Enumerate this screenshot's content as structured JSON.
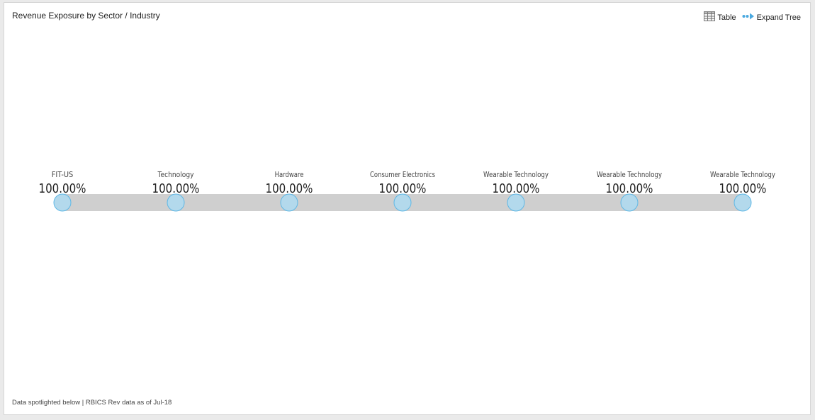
{
  "panel": {
    "title": "Revenue Exposure by Sector / Industry",
    "footer": "Data spotlighted below | RBICS Rev data as of Jul-18"
  },
  "toolbar": {
    "table_label": "Table",
    "expand_label": "Expand Tree"
  },
  "colors": {
    "node_fill": "#b3d9ec",
    "node_stroke": "#5fb8e6",
    "bar": "#cfcfcf",
    "expand_icon": "#4aa9e0"
  },
  "tree": {
    "nodes": [
      {
        "label": "FIT-US",
        "value": "100.00%"
      },
      {
        "label": "Technology",
        "value": "100.00%"
      },
      {
        "label": "Hardware",
        "value": "100.00%"
      },
      {
        "label": "Consumer Electronics",
        "value": "100.00%"
      },
      {
        "label": "Wearable Technology",
        "value": "100.00%"
      },
      {
        "label": "Wearable Technology",
        "value": "100.00%"
      },
      {
        "label": "Wearable Technology",
        "value": "100.00%"
      }
    ]
  }
}
